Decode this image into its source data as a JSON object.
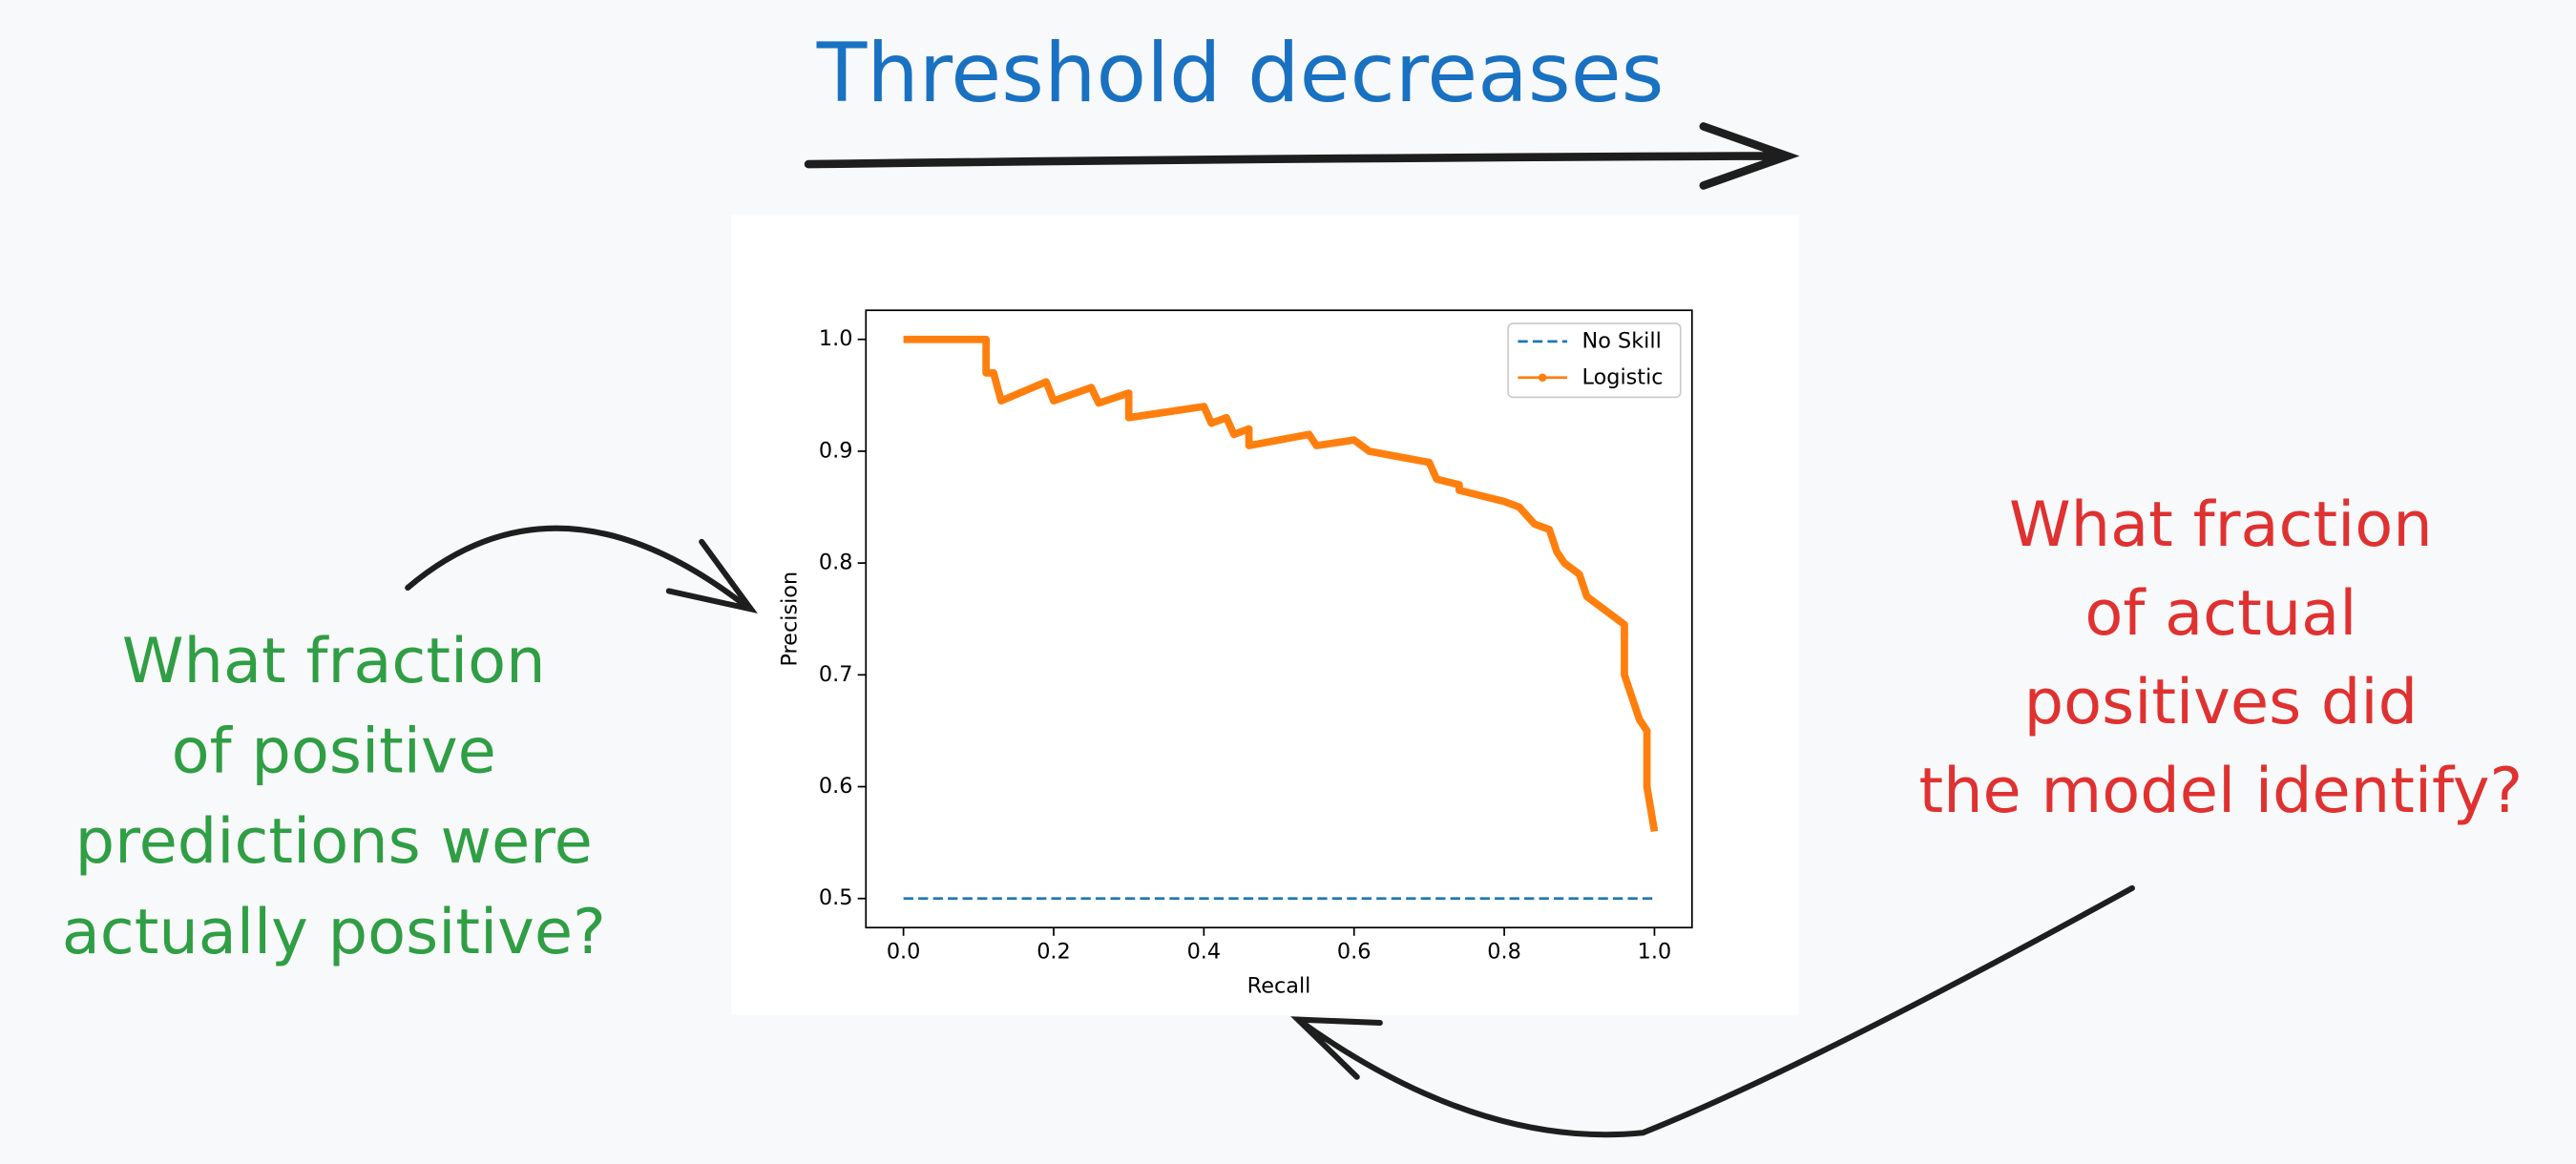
{
  "chart_data": {
    "type": "line",
    "xlabel": "Recall",
    "ylabel": "Precision",
    "xlim": [
      -0.05,
      1.05
    ],
    "ylim": [
      0.474,
      1.026
    ],
    "xticks": [
      {
        "value": 0,
        "label": "0.0"
      },
      0.2,
      0.4,
      0.6,
      0.8,
      {
        "value": 1,
        "label": "1.0"
      }
    ],
    "yticks": [
      0.5,
      0.6,
      0.7,
      0.8,
      0.9,
      {
        "value": 1,
        "label": "1.0"
      }
    ],
    "legend": "upper right",
    "series": [
      {
        "name": "No Skill",
        "color": "#1f77b4",
        "style": "dashed",
        "x": [
          0,
          1
        ],
        "values": [
          0.5,
          0.5
        ]
      },
      {
        "name": "Logistic",
        "color": "#ff7f0e",
        "style": "solid-dot",
        "x": [
          0,
          0.11,
          0.11,
          0.12,
          0.13,
          0.19,
          0.2,
          0.25,
          0.26,
          0.3,
          0.3,
          0.4,
          0.41,
          0.43,
          0.44,
          0.46,
          0.46,
          0.54,
          0.55,
          0.6,
          0.62,
          0.66,
          0.7,
          0.71,
          0.74,
          0.74,
          0.8,
          0.82,
          0.84,
          0.86,
          0.87,
          0.88,
          0.9,
          0.91,
          0.93,
          0.95,
          0.96,
          0.96,
          0.97,
          0.98,
          0.99,
          0.99,
          1.0
        ],
        "values": [
          1,
          1,
          0.97,
          0.97,
          0.945,
          0.962,
          0.945,
          0.957,
          0.943,
          0.952,
          0.93,
          0.94,
          0.925,
          0.93,
          0.915,
          0.92,
          0.905,
          0.915,
          0.905,
          0.91,
          0.9,
          0.895,
          0.89,
          0.875,
          0.87,
          0.865,
          0.855,
          0.85,
          0.835,
          0.83,
          0.81,
          0.8,
          0.79,
          0.77,
          0.76,
          0.75,
          0.745,
          0.7,
          0.68,
          0.66,
          0.65,
          0.6,
          0.56
        ]
      }
    ],
    "annotations": [
      {
        "lines": [
          "Threshold decreases"
        ],
        "color": "#1971c2"
      },
      {
        "lines": [
          "What fraction",
          "of positive",
          "predictions were",
          "actually positive?"
        ],
        "color": "#2f9e44"
      },
      {
        "lines": [
          "What fraction",
          "of actual",
          "positives did",
          "the model identify?"
        ],
        "color": "#e03131"
      }
    ]
  }
}
